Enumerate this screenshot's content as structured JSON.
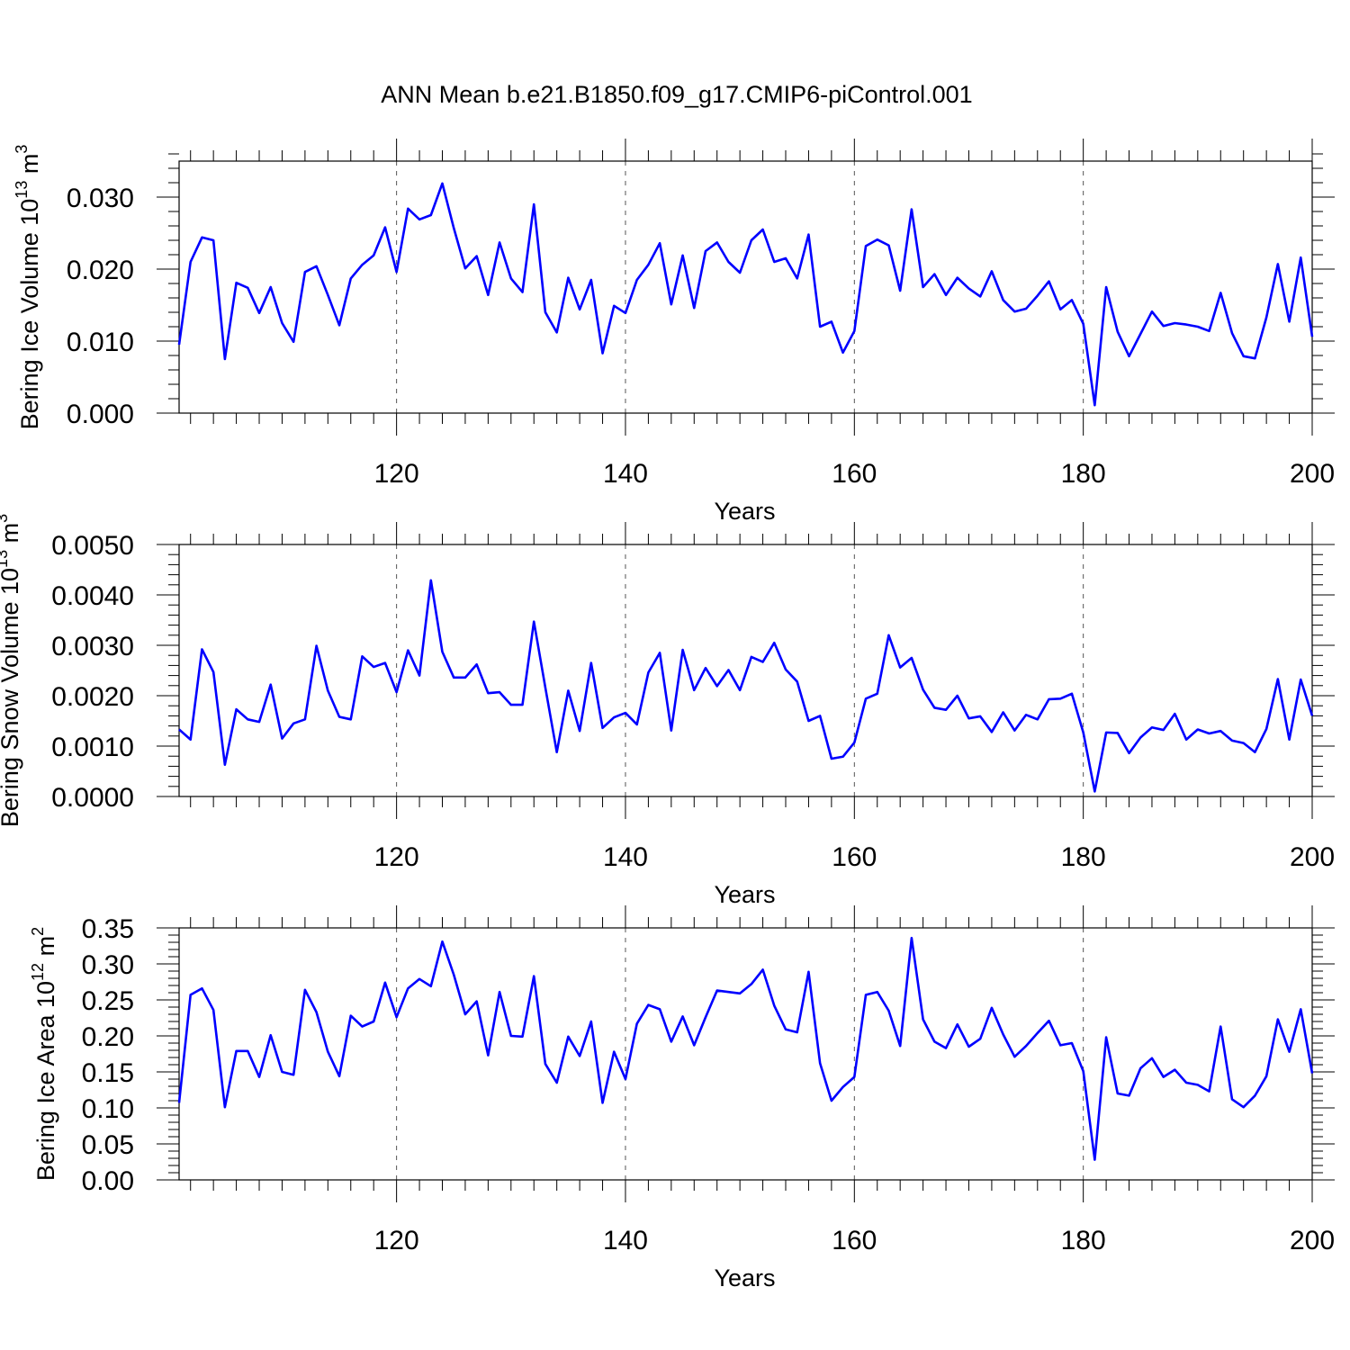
{
  "title": "ANN Mean b.e21.B1850.f09_g17.CMIP6-piControl.001",
  "series_color": "#0000ff",
  "chart_data": [
    {
      "type": "line",
      "ylabel": "Bering Ice Volume 10",
      "ylabel_exp": "13",
      "ylabel_unit": " m",
      "ylabel_unit_exp": "3",
      "xlabel": "Years",
      "xlim": [
        101,
        200
      ],
      "ylim": [
        0,
        0.035
      ],
      "yticks": [
        0.0,
        0.01,
        0.02,
        0.03
      ],
      "ytick_labels": [
        "0.000",
        "0.010",
        "0.020",
        "0.030"
      ],
      "yminor_step": 0.002,
      "xticks": [
        120,
        140,
        160,
        180,
        200
      ],
      "xtick_labels": [
        "120",
        "140",
        "160",
        "180",
        "200"
      ],
      "grid": "vertical-dashed",
      "x": [
        101,
        102,
        103,
        104,
        105,
        106,
        107,
        108,
        109,
        110,
        111,
        112,
        113,
        114,
        115,
        116,
        117,
        118,
        119,
        120,
        121,
        122,
        123,
        124,
        125,
        126,
        127,
        128,
        129,
        130,
        131,
        132,
        133,
        134,
        135,
        136,
        137,
        138,
        139,
        140,
        141,
        142,
        143,
        144,
        145,
        146,
        147,
        148,
        149,
        150,
        151,
        152,
        153,
        154,
        155,
        156,
        157,
        158,
        159,
        160,
        161,
        162,
        163,
        164,
        165,
        166,
        167,
        168,
        169,
        170,
        171,
        172,
        173,
        174,
        175,
        176,
        177,
        178,
        179,
        180,
        181,
        182,
        183,
        184,
        185,
        186,
        187,
        188,
        189,
        190,
        191,
        192,
        193,
        194,
        195,
        196,
        197,
        198,
        199,
        200
      ],
      "values": [
        0.0095,
        0.021,
        0.0244,
        0.024,
        0.0075,
        0.0181,
        0.0174,
        0.0139,
        0.0175,
        0.0125,
        0.0099,
        0.0196,
        0.0204,
        0.0164,
        0.0122,
        0.0187,
        0.0206,
        0.0219,
        0.0258,
        0.0196,
        0.0284,
        0.0269,
        0.0275,
        0.0319,
        0.0257,
        0.0201,
        0.0218,
        0.0164,
        0.0237,
        0.0187,
        0.0168,
        0.029,
        0.014,
        0.0112,
        0.0188,
        0.0144,
        0.0185,
        0.0083,
        0.0149,
        0.0139,
        0.0185,
        0.0206,
        0.0236,
        0.0151,
        0.0219,
        0.0146,
        0.0225,
        0.0237,
        0.021,
        0.0195,
        0.024,
        0.0255,
        0.021,
        0.0215,
        0.0187,
        0.0248,
        0.012,
        0.0127,
        0.0084,
        0.0114,
        0.0232,
        0.0241,
        0.0233,
        0.017,
        0.0283,
        0.0175,
        0.0193,
        0.0164,
        0.0188,
        0.0173,
        0.0162,
        0.0197,
        0.0157,
        0.0141,
        0.0145,
        0.0163,
        0.0183,
        0.0144,
        0.0157,
        0.0124,
        0.0011,
        0.0175,
        0.0113,
        0.0079,
        0.011,
        0.0141,
        0.0121,
        0.0125,
        0.0123,
        0.012,
        0.0114,
        0.0167,
        0.0111,
        0.0079,
        0.0076,
        0.0133,
        0.0207,
        0.0127,
        0.0216,
        0.0106
      ]
    },
    {
      "type": "line",
      "ylabel": "Bering Snow Volume 10",
      "ylabel_exp": "13",
      "ylabel_unit": " m",
      "ylabel_unit_exp": "3",
      "xlabel": "Years",
      "xlim": [
        101,
        200
      ],
      "ylim": [
        0,
        0.005
      ],
      "yticks": [
        0.0,
        0.001,
        0.002,
        0.003,
        0.004,
        0.005
      ],
      "ytick_labels": [
        "0.0000",
        "0.0010",
        "0.0020",
        "0.0030",
        "0.0040",
        "0.0050"
      ],
      "yminor_step": 0.0002,
      "xticks": [
        120,
        140,
        160,
        180,
        200
      ],
      "xtick_labels": [
        "120",
        "140",
        "160",
        "180",
        "200"
      ],
      "grid": "vertical-dashed",
      "x": [
        101,
        102,
        103,
        104,
        105,
        106,
        107,
        108,
        109,
        110,
        111,
        112,
        113,
        114,
        115,
        116,
        117,
        118,
        119,
        120,
        121,
        122,
        123,
        124,
        125,
        126,
        127,
        128,
        129,
        130,
        131,
        132,
        133,
        134,
        135,
        136,
        137,
        138,
        139,
        140,
        141,
        142,
        143,
        144,
        145,
        146,
        147,
        148,
        149,
        150,
        151,
        152,
        153,
        154,
        155,
        156,
        157,
        158,
        159,
        160,
        161,
        162,
        163,
        164,
        165,
        166,
        167,
        168,
        169,
        170,
        171,
        172,
        173,
        174,
        175,
        176,
        177,
        178,
        179,
        180,
        181,
        182,
        183,
        184,
        185,
        186,
        187,
        188,
        189,
        190,
        191,
        192,
        193,
        194,
        195,
        196,
        197,
        198,
        199,
        200
      ],
      "values": [
        0.00133,
        0.00113,
        0.00292,
        0.00247,
        0.00063,
        0.00173,
        0.00153,
        0.00148,
        0.00222,
        0.00115,
        0.00145,
        0.00153,
        0.00299,
        0.0021,
        0.00158,
        0.00153,
        0.00278,
        0.00257,
        0.00265,
        0.00207,
        0.0029,
        0.0024,
        0.00429,
        0.00287,
        0.00236,
        0.00236,
        0.00262,
        0.00205,
        0.00207,
        0.00182,
        0.00182,
        0.00347,
        0.00216,
        0.00088,
        0.0021,
        0.0013,
        0.00265,
        0.00136,
        0.00157,
        0.00166,
        0.00143,
        0.00246,
        0.00285,
        0.00131,
        0.00291,
        0.00211,
        0.00255,
        0.00219,
        0.00251,
        0.00211,
        0.00277,
        0.00267,
        0.00305,
        0.00252,
        0.00228,
        0.0015,
        0.0016,
        0.00075,
        0.00079,
        0.00107,
        0.00194,
        0.00204,
        0.0032,
        0.00256,
        0.00275,
        0.00212,
        0.00176,
        0.00172,
        0.002,
        0.00155,
        0.00159,
        0.00128,
        0.00167,
        0.00131,
        0.00162,
        0.00153,
        0.00193,
        0.00194,
        0.00204,
        0.00127,
        0.0001,
        0.00127,
        0.00126,
        0.00086,
        0.00117,
        0.00137,
        0.00132,
        0.00164,
        0.00113,
        0.00133,
        0.00125,
        0.0013,
        0.00111,
        0.00106,
        0.00088,
        0.00134,
        0.00233,
        0.00113,
        0.00232,
        0.0016
      ]
    },
    {
      "type": "line",
      "ylabel": "Bering Ice Area 10",
      "ylabel_exp": "12",
      "ylabel_unit": " m",
      "ylabel_unit_exp": "2",
      "xlabel": "Years",
      "xlim": [
        101,
        200
      ],
      "ylim": [
        0,
        0.35
      ],
      "yticks": [
        0.0,
        0.05,
        0.1,
        0.15,
        0.2,
        0.25,
        0.3,
        0.35
      ],
      "ytick_labels": [
        "0.00",
        "0.05",
        "0.10",
        "0.15",
        "0.20",
        "0.25",
        "0.30",
        "0.35"
      ],
      "yminor_step": 0.01,
      "xticks": [
        120,
        140,
        160,
        180,
        200
      ],
      "xtick_labels": [
        "120",
        "140",
        "160",
        "180",
        "200"
      ],
      "grid": "vertical-dashed",
      "x": [
        101,
        102,
        103,
        104,
        105,
        106,
        107,
        108,
        109,
        110,
        111,
        112,
        113,
        114,
        115,
        116,
        117,
        118,
        119,
        120,
        121,
        122,
        123,
        124,
        125,
        126,
        127,
        128,
        129,
        130,
        131,
        132,
        133,
        134,
        135,
        136,
        137,
        138,
        139,
        140,
        141,
        142,
        143,
        144,
        145,
        146,
        147,
        148,
        149,
        150,
        151,
        152,
        153,
        154,
        155,
        156,
        157,
        158,
        159,
        160,
        161,
        162,
        163,
        164,
        165,
        166,
        167,
        168,
        169,
        170,
        171,
        172,
        173,
        174,
        175,
        176,
        177,
        178,
        179,
        180,
        181,
        182,
        183,
        184,
        185,
        186,
        187,
        188,
        189,
        190,
        191,
        192,
        193,
        194,
        195,
        196,
        197,
        198,
        199,
        200
      ],
      "values": [
        0.107,
        0.257,
        0.266,
        0.236,
        0.101,
        0.179,
        0.179,
        0.143,
        0.201,
        0.15,
        0.146,
        0.264,
        0.233,
        0.178,
        0.144,
        0.228,
        0.213,
        0.22,
        0.274,
        0.226,
        0.266,
        0.279,
        0.269,
        0.331,
        0.285,
        0.23,
        0.248,
        0.173,
        0.261,
        0.2,
        0.199,
        0.283,
        0.161,
        0.135,
        0.199,
        0.172,
        0.22,
        0.107,
        0.178,
        0.14,
        0.217,
        0.243,
        0.237,
        0.192,
        0.227,
        0.187,
        0.226,
        0.263,
        0.261,
        0.259,
        0.272,
        0.292,
        0.242,
        0.209,
        0.205,
        0.289,
        0.162,
        0.11,
        0.129,
        0.143,
        0.257,
        0.261,
        0.235,
        0.186,
        0.336,
        0.223,
        0.192,
        0.183,
        0.216,
        0.185,
        0.196,
        0.239,
        0.202,
        0.171,
        0.186,
        0.204,
        0.221,
        0.187,
        0.19,
        0.151,
        0.028,
        0.198,
        0.12,
        0.117,
        0.155,
        0.169,
        0.143,
        0.153,
        0.135,
        0.132,
        0.123,
        0.213,
        0.112,
        0.101,
        0.117,
        0.144,
        0.223,
        0.178,
        0.237,
        0.148
      ]
    }
  ]
}
